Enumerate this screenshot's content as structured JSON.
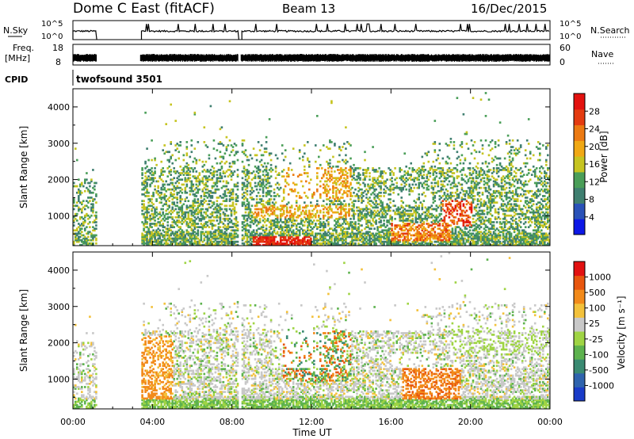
{
  "header": {
    "station": "Dome C East (fitACF)",
    "beam": "Beam 13",
    "date": "16/Dec/2015"
  },
  "panels": {
    "nsky": {
      "left_label": "N.Sky",
      "left_top": "10^5",
      "left_bottom": "10^0",
      "right_top": "10^5",
      "right_bottom": "10^0",
      "right_label": "N.Search"
    },
    "freq": {
      "left_label_1": "Freq.",
      "left_label_2": "[MHz]",
      "left_top": "18",
      "left_bottom": "8",
      "right_top": "60",
      "right_bottom": "0",
      "right_label": "Nave"
    },
    "cpid": {
      "label": "CPID",
      "program": "twofsound 3501"
    }
  },
  "chart_data": [
    {
      "type": "heatmap",
      "name": "power",
      "ylabel": "Slant Range [km]",
      "yticks": [
        1000,
        2000,
        3000,
        4000
      ],
      "ylim": [
        180,
        4500
      ],
      "colorbar_label": "Power [dB]",
      "colorbar_ticks": [
        "4",
        "8",
        "12",
        "16",
        "20",
        "24",
        "28"
      ],
      "colors": [
        "#0d18e6",
        "#2a52b8",
        "#3f7f70",
        "#4a9e58",
        "#c6c421",
        "#f0a814",
        "#ec7a12",
        "#e43b10",
        "#e3120f"
      ]
    },
    {
      "type": "heatmap",
      "name": "velocity",
      "ylabel": "Slant Range [km]",
      "yticks": [
        1000,
        2000,
        3000,
        4000
      ],
      "ylim": [
        180,
        4500
      ],
      "colorbar_label": "Velocity [m s⁻¹]",
      "colorbar_ticks": [
        "1000",
        "500",
        "100",
        "25",
        "-25",
        "-100",
        "-500",
        "-1000"
      ],
      "colors": [
        "#1a3cc8",
        "#2f63ad",
        "#3a8a72",
        "#5db24e",
        "#9fd444",
        "#c8c8c8",
        "#f3c13b",
        "#f28a1a",
        "#e8560e",
        "#e21111"
      ]
    }
  ],
  "xaxis": {
    "label": "Time UT",
    "ticks": [
      "00:00",
      "04:00",
      "08:00",
      "12:00",
      "16:00",
      "20:00",
      "00:00"
    ],
    "range_hours": [
      0,
      24
    ]
  },
  "data_gaps_hours": [
    [
      1.2,
      3.4
    ],
    [
      8.3,
      8.45
    ]
  ]
}
